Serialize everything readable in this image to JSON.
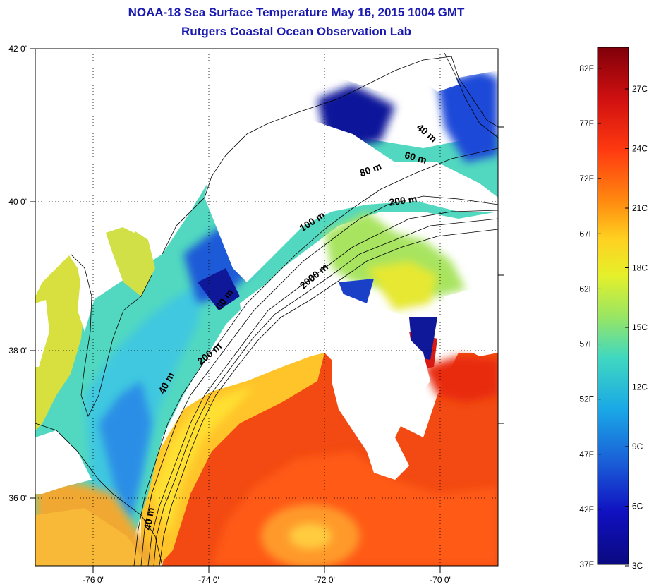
{
  "title": {
    "line1": "NOAA-18 Sea Surface Temperature May 16, 2015 1004 GMT",
    "line2": "Rutgers Coastal Ocean Observation Lab"
  },
  "map": {
    "longitude_labels": [
      "-76 0'",
      "-74 0'",
      "-72 0'",
      "-70 0'"
    ],
    "latitude_labels": [
      "42 0'",
      "40 0'",
      "38 0'",
      "36 0'"
    ],
    "contour_labels": [
      "40 m",
      "60 m",
      "80 m",
      "200 m",
      "100 m",
      "2000 m",
      "60 m",
      "40 m",
      "200 m",
      "40 m"
    ]
  },
  "colorbar": {
    "fahrenheit_labels": [
      "82F",
      "77F",
      "72F",
      "67F",
      "62F",
      "57F",
      "52F",
      "47F",
      "42F",
      "37F"
    ],
    "celsius_labels": [
      "27C",
      "24C",
      "21C",
      "18C",
      "15C",
      "12C",
      "9C",
      "6C",
      "3C"
    ],
    "scale_colors": [
      "#80000a",
      "#d01010",
      "#ff3a10",
      "#ff8c10",
      "#ffd020",
      "#e6f02a",
      "#9ae662",
      "#40d8c0",
      "#1aa8e6",
      "#1a60d8",
      "#1010c0",
      "#0a0a80"
    ]
  }
}
